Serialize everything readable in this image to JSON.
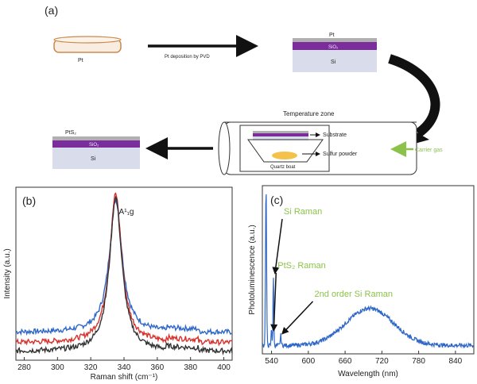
{
  "panel_a": {
    "label": "(a)",
    "pt_disc_label": "Pt",
    "step1_label": "Pt deposition by PVD",
    "stack1": {
      "top": "Pt",
      "middle": "SiO₂",
      "bottom": "Si"
    },
    "temperature_zone": "Temperature zone",
    "substrate": "Substrate",
    "sulfur_powder": "Sulfur powder",
    "quartz_boat": "Quartz boat",
    "carrier_gas": "Carrier gas",
    "stack2": {
      "top": "PtS₂",
      "middle": "SiO₂",
      "bottom": "Si"
    },
    "colors": {
      "pt": "#b0b0b0",
      "sio2": "#7b2d9c",
      "si": "#d8dceb",
      "sulfur": "#f4c24a",
      "disc": "#f8ede0",
      "disc_border": "#c98a4b",
      "green": "#8bc34a"
    }
  },
  "chart_data": [
    {
      "type": "line",
      "panel_label": "(b)",
      "xlabel": "Raman shift (cm⁻¹)",
      "ylabel": "Intensity (a.u.)",
      "xlim": [
        275,
        405
      ],
      "xticks": [
        280,
        300,
        320,
        340,
        360,
        380,
        400
      ],
      "ylim": [
        0,
        1
      ],
      "peak_label": "A¹₁g",
      "peak_label_x": 335,
      "series": [
        {
          "color": "#2f67c8",
          "base": 0.16,
          "peak": 0.93,
          "x0": 335,
          "w": 4.6
        },
        {
          "color": "#d9302c",
          "base": 0.1,
          "peak": 0.96,
          "x0": 335,
          "w": 4.4
        },
        {
          "color": "#333333",
          "base": 0.05,
          "peak": 0.94,
          "x0": 335,
          "w": 4.5
        }
      ]
    },
    {
      "type": "line",
      "panel_label": "(c)",
      "xlabel": "Wavelength (nm)",
      "ylabel": "Photoluminescence (a.u.)",
      "xlim": [
        525,
        870
      ],
      "xticks": [
        540,
        600,
        660,
        720,
        780,
        840
      ],
      "ylim": [
        0,
        1
      ],
      "annotations": [
        {
          "text": "Si Raman",
          "x": 560,
          "y": 0.83,
          "arrow_to_x": 543,
          "arrow_to_y": 0.48
        },
        {
          "text": "PtS₂ Raman",
          "x": 550,
          "y": 0.51,
          "arrow_to_x": 541,
          "arrow_to_y": 0.14
        },
        {
          "text": "2nd order Si Raman",
          "x": 610,
          "y": 0.34,
          "arrow_to_x": 555,
          "arrow_to_y": 0.12
        }
      ],
      "series": [
        {
          "color": "#2f67c8",
          "broad_center": 700,
          "broad_width": 55,
          "broad_amp": 0.22,
          "base": 0.05
        }
      ]
    }
  ]
}
